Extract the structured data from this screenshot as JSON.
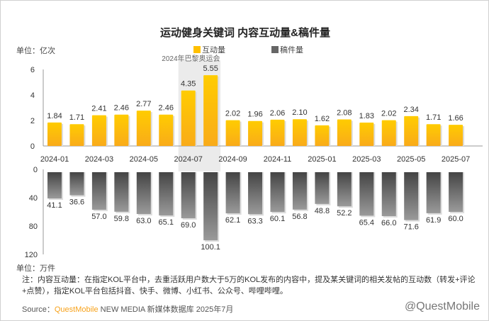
{
  "chart_data": [
    {
      "type": "bar",
      "title": "运动健身关键词 内容互动量&稿件量",
      "series_name": "互动量",
      "unit": "单位：亿次",
      "color": "#ffc000",
      "ylim": [
        0,
        6
      ],
      "yticks": [
        0,
        2,
        4,
        6
      ],
      "categories": [
        "2024-01",
        "2024-02",
        "2024-03",
        "2024-04",
        "2024-05",
        "2024-06",
        "2024-07",
        "2024-08",
        "2024-09",
        "2024-10",
        "2024-11",
        "2024-12",
        "2025-01",
        "2025-02",
        "2025-03",
        "2025-04",
        "2025-05",
        "2025-06",
        "2025-07"
      ],
      "xtick_labels": [
        "2024-01",
        "2024-03",
        "2024-05",
        "2024-07",
        "2024-09",
        "2024-11",
        "2025-01",
        "2025-03",
        "2025-05",
        "2025-07"
      ],
      "values": [
        1.84,
        1.71,
        2.41,
        2.46,
        2.77,
        2.46,
        4.35,
        5.55,
        2.02,
        1.96,
        2.06,
        2.1,
        1.62,
        2.08,
        1.83,
        2.02,
        2.34,
        1.71,
        1.66
      ],
      "value_labels": [
        "1.84",
        "1.71",
        "2.41",
        "2.46",
        "2.77",
        "2.46",
        "4.35",
        "5.55",
        "2.02",
        "1.96",
        "2.06",
        "2.10",
        "1.62",
        "2.08",
        "1.83",
        "2.02",
        "2.34",
        "1.71",
        "1.66"
      ],
      "annotation": "2024年巴黎奥运会"
    },
    {
      "type": "bar",
      "series_name": "稿件量",
      "unit": "单位：万件",
      "color": "#808080",
      "ylim": [
        0,
        120
      ],
      "yticks": [
        0,
        40,
        80,
        120
      ],
      "inverted": true,
      "values": [
        41.1,
        36.6,
        57.0,
        59.8,
        63.0,
        65.1,
        69.0,
        100.1,
        62.1,
        63.3,
        60.1,
        56.8,
        48.8,
        52.2,
        65.4,
        66.0,
        71.6,
        61.9,
        60.0
      ],
      "value_labels": [
        "41.1",
        "36.6",
        "57.0",
        "59.8",
        "63.0",
        "65.1",
        "69.0",
        "100.1",
        "62.1",
        "63.3",
        "60.1",
        "56.8",
        "48.8",
        "52.2",
        "65.4",
        "66.0",
        "71.6",
        "61.9",
        "60.0"
      ]
    }
  ],
  "title": "运动健身关键词 内容互动量&稿件量",
  "legend": [
    "互动量",
    "稿件量"
  ],
  "unit_top": "单位：亿次",
  "unit_bottom": "单位：万件",
  "note": "注：内容互动量：在指定KOL平台中，去重活跃用户数大于5万的KOL发布的内容中，提及某关键词的相关发帖的互动数（转发+评论+点赞），指定KOL平台包括抖音、快手、微博、小红书、公众号、哔哩哔哩。",
  "source_label": "Source：",
  "source_brand": "QuestMobile",
  "source_rest": " NEW MEDIA 新媒体数据库 2025年7月",
  "watermark": "@QuestMobile"
}
